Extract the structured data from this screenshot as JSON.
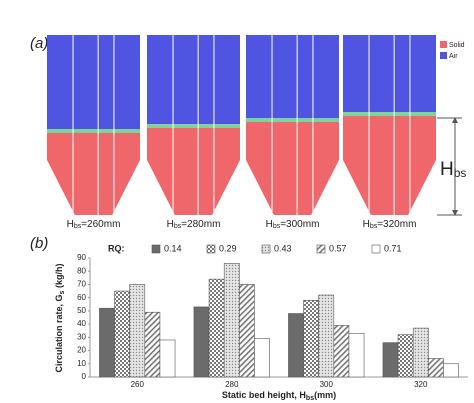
{
  "panel_a": {
    "tag": "(a)",
    "legend": [
      {
        "name": "Solid",
        "color": "#f0676b"
      },
      {
        "name": "Air",
        "color": "#4f55e0"
      }
    ],
    "silos": [
      {
        "label": [
          "H",
          "bs",
          "=260mm"
        ]
      },
      {
        "label": [
          "H",
          "bs",
          "=280mm"
        ]
      },
      {
        "label": [
          "H",
          "bs",
          "=300mm"
        ]
      },
      {
        "label": [
          "H",
          "bs",
          "=320mm"
        ]
      }
    ],
    "height_label": [
      "H",
      "bs"
    ]
  },
  "chart_data": {
    "type": "bar",
    "tag": "(b)",
    "legend_title": "RQ:",
    "y_label": [
      "Circulation rate, G",
      "s",
      " (kg/h)"
    ],
    "x_label": [
      "Static bed height, H",
      "bs",
      "(mm)"
    ],
    "categories": [
      "260",
      "280",
      "300",
      "320"
    ],
    "series": [
      {
        "name": "0.14",
        "color": "#6b6b6b",
        "pattern": "solid",
        "values": [
          52,
          53,
          48,
          26
        ]
      },
      {
        "name": "0.29",
        "color": "#8a8a8a",
        "pattern": "checker",
        "values": [
          65,
          74,
          58,
          32
        ]
      },
      {
        "name": "0.43",
        "color": "#bdbdbd",
        "pattern": "dots",
        "values": [
          70,
          86,
          62,
          37
        ]
      },
      {
        "name": "0.57",
        "color": "#8a8a8a",
        "pattern": "hatch",
        "values": [
          49,
          70,
          39,
          14
        ]
      },
      {
        "name": "0.71",
        "color": "#ffffff",
        "pattern": "solid",
        "values": [
          28,
          29,
          33,
          10
        ]
      }
    ],
    "ylim": [
      0,
      90
    ],
    "yticks": [
      0,
      10,
      20,
      30,
      40,
      50,
      60,
      70,
      80,
      90
    ],
    "grid": false
  }
}
